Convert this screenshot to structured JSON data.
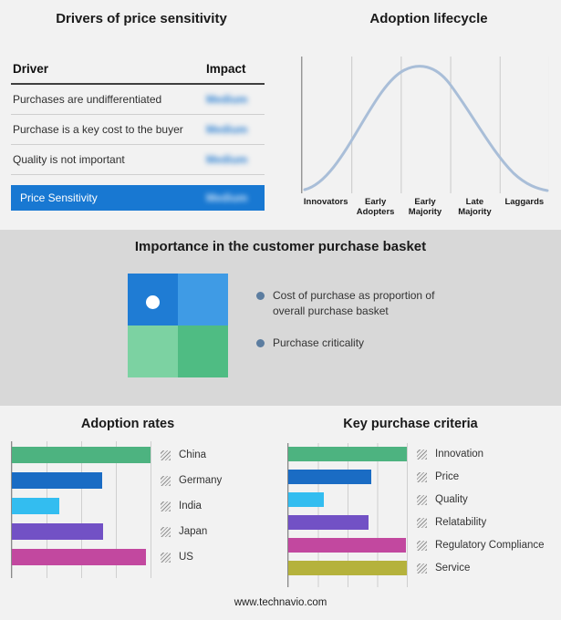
{
  "drivers_table": {
    "title": "Drivers of price sensitivity",
    "columns": {
      "driver": "Driver",
      "impact": "Impact"
    },
    "rows": [
      {
        "driver": "Purchases are undifferentiated",
        "impact": "Medium"
      },
      {
        "driver": "Purchase is a key cost to the buyer",
        "impact": "Medium"
      },
      {
        "driver": "Quality is not important",
        "impact": "Medium"
      }
    ],
    "summary_row": {
      "label": "Price Sensitivity",
      "impact": "Medium",
      "background": "#1878d2"
    }
  },
  "purchase_basket": {
    "title": "Importance in the customer purchase basket",
    "legend": [
      "Cost of purchase as proportion of overall purchase basket",
      "Purchase criticality"
    ],
    "quadrant_colors": [
      "#1f7cd4",
      "#3f9be5",
      "#7cd2a2",
      "#4fbc83"
    ],
    "bullet_color": "#5c7da0"
  },
  "chart_data": [
    {
      "type": "line",
      "title": "Adoption lifecycle",
      "shape": "bell-curve",
      "curve_color": "#a9bed8",
      "categories": [
        "Innovators",
        "Early Adopters",
        "Early Majority",
        "Late Majority",
        "Laggards"
      ],
      "grid": true,
      "legend_position": "none"
    },
    {
      "type": "bar",
      "title": "Adoption rates",
      "orientation": "horizontal",
      "categories": [
        "China",
        "Germany",
        "India",
        "Japan",
        "US"
      ],
      "values": [
        100,
        65,
        34,
        66,
        97
      ],
      "colors": [
        "#4db380",
        "#1a6cc4",
        "#33bdf0",
        "#7251c5",
        "#c2489f"
      ],
      "xlim": [
        0,
        100
      ],
      "grid": true,
      "legend_position": "right"
    },
    {
      "type": "bar",
      "title": "Key purchase criteria",
      "orientation": "horizontal",
      "categories": [
        "Innovation",
        "Price",
        "Quality",
        "Relatability",
        "Regulatory Compliance",
        "Service"
      ],
      "values": [
        100,
        70,
        30,
        68,
        99,
        100
      ],
      "colors": [
        "#4db380",
        "#1a6cc4",
        "#33bdf0",
        "#7251c5",
        "#c2489f",
        "#b5b23c"
      ],
      "xlim": [
        0,
        100
      ],
      "grid": true,
      "legend_position": "right"
    }
  ],
  "footer": {
    "url": "www.technavio.com"
  }
}
